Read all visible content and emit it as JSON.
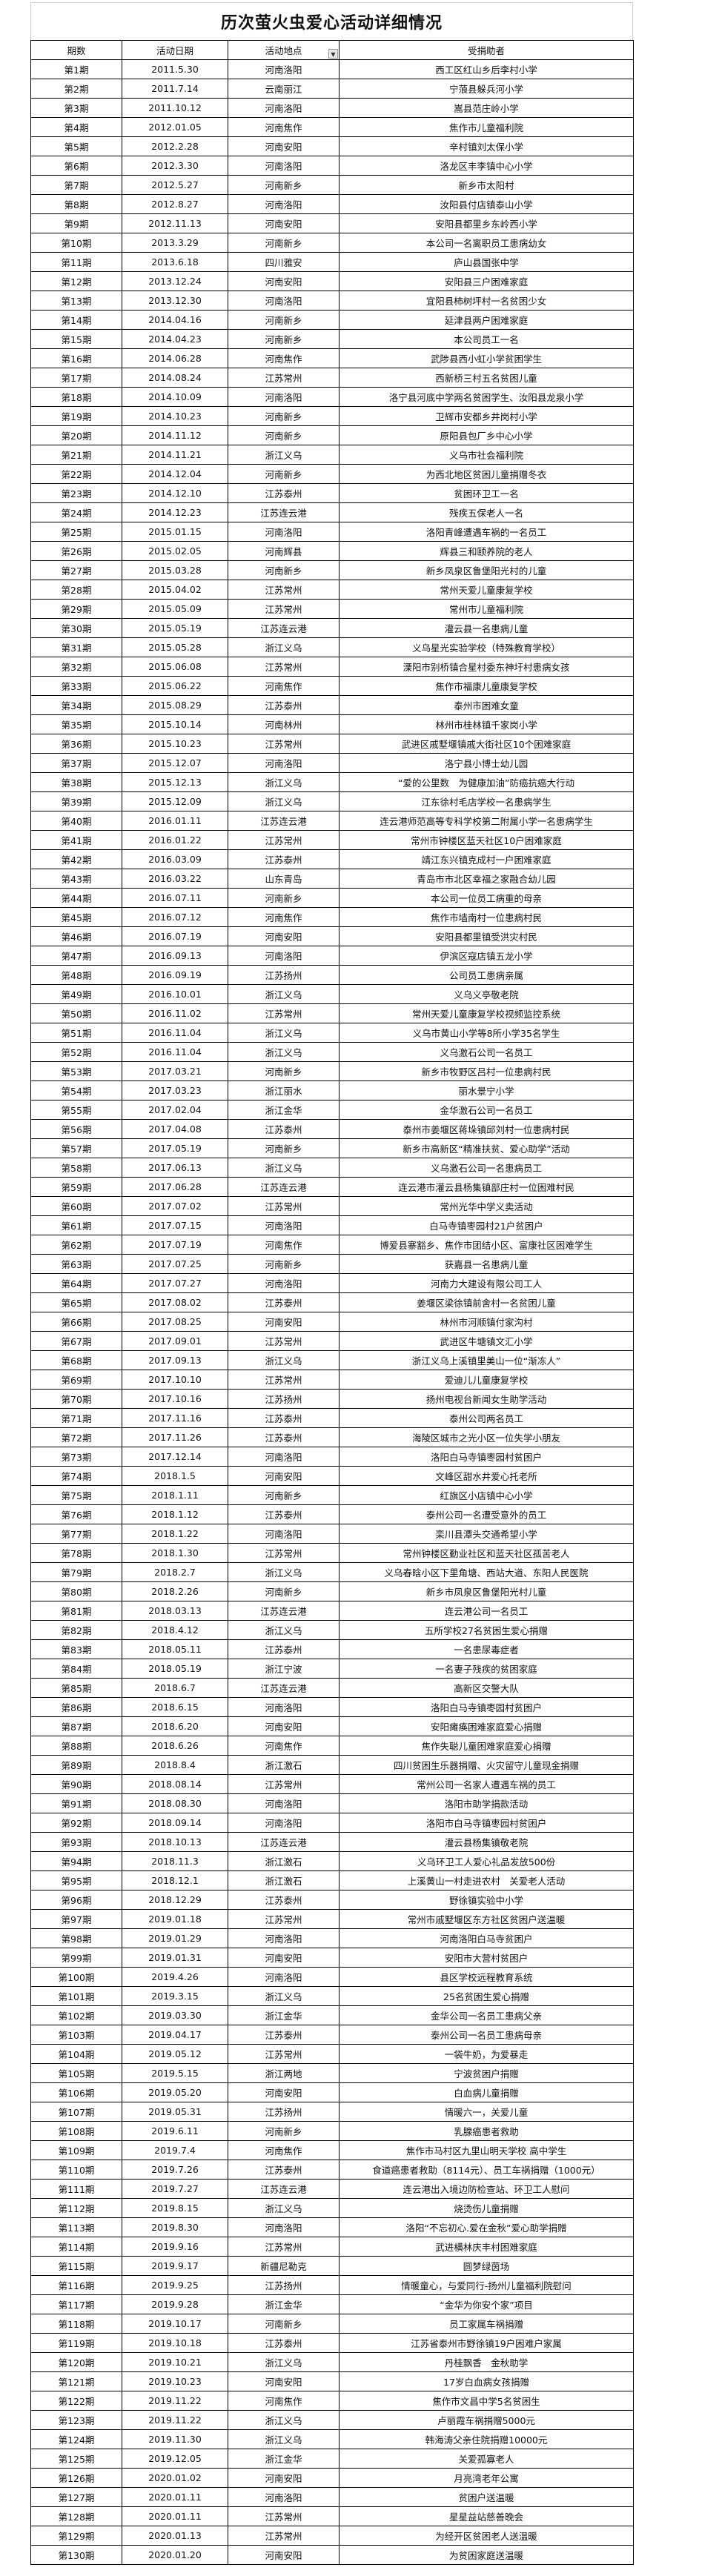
{
  "title": "历次萤火虫爱心活动详细情况",
  "headers": [
    "期数",
    "活动日期",
    "活动地点",
    "受捐助者"
  ],
  "filter_icon": "dropdown-filter-icon",
  "rows": [
    [
      "第1期",
      "2011.5.30",
      "河南洛阳",
      "西工区红山乡后李村小学"
    ],
    [
      "第2期",
      "2011.7.14",
      "云南丽江",
      "宁蒗县躲兵河小学"
    ],
    [
      "第3期",
      "2011.10.12",
      "河南洛阳",
      "嵩县范庄岭小学"
    ],
    [
      "第4期",
      "2012.01.05",
      "河南焦作",
      "焦作市儿童福利院"
    ],
    [
      "第5期",
      "2012.2.28",
      "河南安阳",
      "辛村镇刘太保小学"
    ],
    [
      "第6期",
      "2012.3.30",
      "河南洛阳",
      "洛龙区丰李镇中心小学"
    ],
    [
      "第7期",
      "2012.5.27",
      "河南新乡",
      "新乡市太阳村"
    ],
    [
      "第8期",
      "2012.8.27",
      "河南洛阳",
      "汝阳县付店镇泰山小学"
    ],
    [
      "第9期",
      "2012.11.13",
      "河南安阳",
      "安阳县都里乡东岭西小学"
    ],
    [
      "第10期",
      "2013.3.29",
      "河南新乡",
      "本公司一名离职员工患病幼女"
    ],
    [
      "第11期",
      "2013.6.18",
      "四川雅安",
      "庐山县国张中学"
    ],
    [
      "第12期",
      "2013.12.24",
      "河南安阳",
      "安阳县三户困难家庭"
    ],
    [
      "第13期",
      "2013.12.30",
      "河南洛阳",
      "宜阳县柿树坪村一名贫困少女"
    ],
    [
      "第14期",
      "2014.04.16",
      "河南新乡",
      "延津县两户困难家庭"
    ],
    [
      "第15期",
      "2014.04.23",
      "河南新乡",
      "本公司员工一名"
    ],
    [
      "第16期",
      "2014.06.28",
      "河南焦作",
      "武陟县西小虹小学贫困学生"
    ],
    [
      "第17期",
      "2014.08.24",
      "江苏常州",
      "西新桥三村五名贫困儿童"
    ],
    [
      "第18期",
      "2014.10.09",
      "河南洛阳",
      "洛宁县河底中学两名贫困学生、汝阳县龙泉小学"
    ],
    [
      "第19期",
      "2014.10.23",
      "河南新乡",
      "卫辉市安都乡井岗村小学"
    ],
    [
      "第20期",
      "2014.11.12",
      "河南新乡",
      "原阳县包厂乡中心小学"
    ],
    [
      "第21期",
      "2014.11.21",
      "浙江义乌",
      "义乌市社会福利院"
    ],
    [
      "第22期",
      "2014.12.04",
      "河南新乡",
      "为西北地区贫困儿童捐赠冬衣"
    ],
    [
      "第23期",
      "2014.12.10",
      "江苏泰州",
      "贫困环卫工一名"
    ],
    [
      "第24期",
      "2014.12.23",
      "江苏连云港",
      "残疾五保老人一名"
    ],
    [
      "第25期",
      "2015.01.15",
      "河南洛阳",
      "洛阳青峰遭遇车祸的一名员工"
    ],
    [
      "第26期",
      "2015.02.05",
      "河南辉县",
      "辉县三和颐养院的老人"
    ],
    [
      "第27期",
      "2015.03.28",
      "河南新乡",
      "新乡凤泉区鲁堡阳光村的儿童"
    ],
    [
      "第28期",
      "2015.04.02",
      "江苏常州",
      "常州天爱儿童康复学校"
    ],
    [
      "第29期",
      "2015.05.09",
      "江苏常州",
      "常州市儿童福利院"
    ],
    [
      "第30期",
      "2015.05.19",
      "江苏连云港",
      "灌云县一名患病儿童"
    ],
    [
      "第31期",
      "2015.05.28",
      "浙江义乌",
      "义乌星光实验学校（特殊教育学校）"
    ],
    [
      "第32期",
      "2015.06.08",
      "江苏常州",
      "溧阳市别桥镇合星村委东神圩村患病女孩"
    ],
    [
      "第33期",
      "2015.06.22",
      "河南焦作",
      "焦作市福康儿童康复学校"
    ],
    [
      "第34期",
      "2015.08.29",
      "江苏泰州",
      "泰州市困难女童"
    ],
    [
      "第35期",
      "2015.10.14",
      "河南林州",
      "林州市桂林镇千家岗小学"
    ],
    [
      "第36期",
      "2015.10.23",
      "江苏常州",
      "武进区戚墅堰镇戚大街社区10个困难家庭"
    ],
    [
      "第37期",
      "2015.12.07",
      "河南洛阳",
      "洛宁县小博士幼儿园"
    ],
    [
      "第38期",
      "2015.12.13",
      "浙江义乌",
      "“爱的公里数　为健康加油”防癌抗癌大行动"
    ],
    [
      "第39期",
      "2015.12.09",
      "浙江义乌",
      "江东徐村毛店学校一名患病学生"
    ],
    [
      "第40期",
      "2016.01.11",
      "江苏连云港",
      "连云港师范高等专科学校第二附属小学一名患病学生"
    ],
    [
      "第41期",
      "2016.01.22",
      "江苏常州",
      "常州市钟楼区蓝天社区10户困难家庭"
    ],
    [
      "第42期",
      "2016.03.09",
      "江苏泰州",
      "靖江东兴镇克成村一户困难家庭"
    ],
    [
      "第43期",
      "2016.03.22",
      "山东青岛",
      "青岛市市北区幸福之家融合幼儿园"
    ],
    [
      "第44期",
      "2016.07.11",
      "河南新乡",
      "本公司一位员工病重的母亲"
    ],
    [
      "第45期",
      "2016.07.12",
      "河南焦作",
      "焦作市墙南村一位患病村民"
    ],
    [
      "第46期",
      "2016.07.19",
      "河南安阳",
      "安阳县都里镇受洪灾村民"
    ],
    [
      "第47期",
      "2016.09.13",
      "河南洛阳",
      "伊滨区寇店镇五龙小学"
    ],
    [
      "第48期",
      "2016.09.19",
      "江苏扬州",
      "公司员工患病亲属"
    ],
    [
      "第49期",
      "2016.10.01",
      "浙江义乌",
      "义乌义亭敬老院"
    ],
    [
      "第50期",
      "2016.11.02",
      "江苏常州",
      "常州天爱儿童康复学校视频监控系统"
    ],
    [
      "第51期",
      "2016.11.04",
      "浙江义乌",
      "义乌市黄山小学等8所小学35名学生"
    ],
    [
      "第52期",
      "2016.11.04",
      "浙江义乌",
      "义乌激石公司一名员工"
    ],
    [
      "第53期",
      "2017.03.21",
      "河南新乡",
      "新乡市牧野区吕村一位患病村民"
    ],
    [
      "第54期",
      "2017.03.23",
      "浙江丽水",
      "丽水景宁小学"
    ],
    [
      "第55期",
      "2017.02.04",
      "浙江金华",
      "金华激石公司一名员工"
    ],
    [
      "第56期",
      "2017.04.08",
      "江苏泰州",
      "泰州市姜堰区蒋垛镇邱刘村一位患病村民"
    ],
    [
      "第57期",
      "2017.05.19",
      "河南新乡",
      "新乡市高新区“精准扶贫、爱心助学”活动"
    ],
    [
      "第58期",
      "2017.06.13",
      "浙江义乌",
      "义乌激石公司一名患病员工"
    ],
    [
      "第59期",
      "2017.06.28",
      "江苏连云港",
      "连云港市灌云县杨集镇部庄村一位困难村民"
    ],
    [
      "第60期",
      "2017.07.02",
      "江苏常州",
      "常州光华中学义卖活动"
    ],
    [
      "第61期",
      "2017.07.15",
      "河南洛阳",
      "白马寺镇枣园村21户贫困户"
    ],
    [
      "第62期",
      "2017.07.19",
      "河南焦作",
      "博爱县寨豁乡、焦作市团结小区、富康社区困难学生"
    ],
    [
      "第63期",
      "2017.07.25",
      "河南新乡",
      "获嘉县一名患病儿童"
    ],
    [
      "第64期",
      "2017.07.27",
      "河南洛阳",
      "河南力大建设有限公司工人"
    ],
    [
      "第65期",
      "2017.08.02",
      "江苏泰州",
      "姜堰区梁徐镇前舍村一名贫困儿童"
    ],
    [
      "第66期",
      "2017.08.25",
      "河南安阳",
      "林州市河顺镇付家沟村"
    ],
    [
      "第67期",
      "2017.09.01",
      "江苏常州",
      "武进区牛塘镇文汇小学"
    ],
    [
      "第68期",
      "2017.09.13",
      "浙江义乌",
      "浙江义乌上溪镇里美山一位“渐冻人”"
    ],
    [
      "第69期",
      "2017.10.10",
      "江苏常州",
      "爱迪儿儿童康复学校"
    ],
    [
      "第70期",
      "2017.10.16",
      "江苏扬州",
      "扬州电视台新闻女生助学活动"
    ],
    [
      "第71期",
      "2017.11.16",
      "江苏泰州",
      "泰州公司两名员工"
    ],
    [
      "第72期",
      "2017.11.26",
      "江苏泰州",
      "海陵区城市之光小区一位失学小朋友"
    ],
    [
      "第73期",
      "2017.12.14",
      "河南洛阳",
      "洛阳白马寺镇枣园村贫困户"
    ],
    [
      "第74期",
      "2018.1.5",
      "河南安阳",
      "文峰区甜水井爱心托老所"
    ],
    [
      "第75期",
      "2018.1.11",
      "河南新乡",
      "红旗区小店镇中心小学"
    ],
    [
      "第76期",
      "2018.1.12",
      "江苏泰州",
      "泰州公司一名遭受意外的员工"
    ],
    [
      "第77期",
      "2018.1.22",
      "河南洛阳",
      "栾川县潭头交通希望小学"
    ],
    [
      "第78期",
      "2018.1.30",
      "江苏常州",
      "常州钟楼区勤业社区和蓝天社区孤苦老人"
    ],
    [
      "第79期",
      "2018.2.7",
      "浙江义乌",
      "义乌春晗小区下里角塘、西站大道、东阳人民医院"
    ],
    [
      "第80期",
      "2018.2.26",
      "河南新乡",
      "新乡市凤泉区鲁堡阳光村儿童"
    ],
    [
      "第81期",
      "2018.03.13",
      "江苏连云港",
      "连云港公司一名员工"
    ],
    [
      "第82期",
      "2018.4.12",
      "浙江义乌",
      "五所学校27名贫困生爱心捐赠"
    ],
    [
      "第83期",
      "2018.05.11",
      "江苏泰州",
      "一名患尿毒症者"
    ],
    [
      "第84期",
      "2018.05.19",
      "浙江宁波",
      "一名妻子残疾的贫困家庭"
    ],
    [
      "第85期",
      "2018.6.7",
      "江苏连云港",
      "高新区交警大队"
    ],
    [
      "第86期",
      "2018.6.15",
      "河南洛阳",
      "洛阳白马寺镇枣园村贫困户"
    ],
    [
      "第87期",
      "2018.6.20",
      "河南安阳",
      "安阳瘫痪困难家庭爱心捐赠"
    ],
    [
      "第88期",
      "2018.6.26",
      "河南焦作",
      "焦作失聪儿童困难家庭爱心捐赠"
    ],
    [
      "第89期",
      "2018.8.4",
      "浙江激石",
      "四川贫困生乐器捐赠、火灾留守儿童现金捐赠"
    ],
    [
      "第90期",
      "2018.08.14",
      "江苏常州",
      "常州公司一名家人遭遇车祸的员工"
    ],
    [
      "第91期",
      "2018.08.30",
      "河南洛阳",
      "洛阳市助学捐款活动"
    ],
    [
      "第92期",
      "2018.09.14",
      "河南洛阳",
      "洛阳市白马寺镇枣园村贫困户"
    ],
    [
      "第93期",
      "2018.10.13",
      "江苏连云港",
      "灌云县杨集镇敬老院"
    ],
    [
      "第94期",
      "2018.11.3",
      "浙江激石",
      "义乌环卫工人爱心礼品发放500份"
    ],
    [
      "第95期",
      "2018.12.1",
      "浙江激石",
      "上溪黄山一村走进农村　关爱老人活动"
    ],
    [
      "第96期",
      "2018.12.29",
      "江苏泰州",
      "野徐镇实验中小学"
    ],
    [
      "第97期",
      "2019.01.18",
      "江苏常州",
      "常州市戚墅堰区东方社区贫困户送温暖"
    ],
    [
      "第98期",
      "2019.01.29",
      "河南洛阳",
      "河南洛阳白马寺贫困户"
    ],
    [
      "第99期",
      "2019.01.31",
      "河南安阳",
      "安阳市大营村贫困户"
    ],
    [
      "第100期",
      "2019.4.26",
      "河南洛阳",
      "县区学校远程教育系统"
    ],
    [
      "第101期",
      "2019.3.15",
      "浙江义乌",
      "25名贫困生爱心捐赠"
    ],
    [
      "第102期",
      "2019.03.30",
      "浙江金华",
      "金华公司一名员工患病父亲"
    ],
    [
      "第103期",
      "2019.04.17",
      "江苏泰州",
      "泰州公司一名员工患病母亲"
    ],
    [
      "第104期",
      "2019.05.12",
      "江苏常州",
      "一袋牛奶，为爱暴走"
    ],
    [
      "第105期",
      "2019.5.15",
      "浙江两地",
      "宁波贫困户捐赠"
    ],
    [
      "第106期",
      "2019.05.20",
      "河南安阳",
      "白血病儿童捐赠"
    ],
    [
      "第107期",
      "2019.05.31",
      "江苏扬州",
      "情暖六一，关爱儿童"
    ],
    [
      "第108期",
      "2019.6.11",
      "河南新乡",
      "乳腺癌患者救助"
    ],
    [
      "第109期",
      "2019.7.4",
      "河南焦作",
      "焦作市马村区九里山明天学校 高中学生"
    ],
    [
      "第110期",
      "2019.7.26",
      "江苏泰州",
      "食道癌患者救助（8114元）、员工车祸捐赠（1000元）"
    ],
    [
      "第111期",
      "2019.7.27",
      "江苏连云港",
      "连云港出入境边防检查站、环卫工人慰问"
    ],
    [
      "第112期",
      "2019.8.15",
      "浙江义乌",
      "烧烫伤儿童捐赠"
    ],
    [
      "第113期",
      "2019.8.30",
      "河南洛阳",
      "洛阳“不忘初心.爱在金秋”爱心助学捐赠"
    ],
    [
      "第114期",
      "2019.9.16",
      "江苏常州",
      "武进横林庆丰村困难家庭"
    ],
    [
      "第115期",
      "2019.9.17",
      "新疆尼勒克",
      "圆梦绿茵场"
    ],
    [
      "第116期",
      "2019.9.25",
      "江苏扬州",
      "情暖童心，与爱同行-扬州儿童福利院慰问"
    ],
    [
      "第117期",
      "2019.9.28",
      "浙江金华",
      "“金华为你安个家”项目"
    ],
    [
      "第118期",
      "2019.10.17",
      "河南新乡",
      "员工家属车祸捐赠"
    ],
    [
      "第119期",
      "2019.10.18",
      "江苏泰州",
      "江苏省泰州市野徐镇19户困难户家属"
    ],
    [
      "第120期",
      "2019.10.21",
      "浙江义乌",
      "丹桂飘香　金秋助学"
    ],
    [
      "第121期",
      "2019.10.23",
      "河南安阳",
      "17岁白血病女孩捐赠"
    ],
    [
      "第122期",
      "2019.11.22",
      "河南焦作",
      "焦作市文昌中学5名贫困生"
    ],
    [
      "第123期",
      "2019.11.22",
      "浙江义乌",
      "卢丽霞车祸捐赠5000元"
    ],
    [
      "第124期",
      "2019.11.30",
      "浙江义乌",
      "韩海涛父亲住院捐赠10000元"
    ],
    [
      "第125期",
      "2019.12.05",
      "浙江金华",
      "关爱孤寡老人"
    ],
    [
      "第126期",
      "2020.01.02",
      "河南安阳",
      "月亮湾老年公寓"
    ],
    [
      "第127期",
      "2020.01.11",
      "河南洛阳",
      "贫困户送温暖"
    ],
    [
      "第128期",
      "2020.01.11",
      "江苏常州",
      "星星益站慈善晚会"
    ],
    [
      "第129期",
      "2020.01.13",
      "江苏常州",
      "为经开区贫困老人送温暖"
    ],
    [
      "第130期",
      "2020.01.20",
      "河南安阳",
      "为贫困家庭送温暖"
    ]
  ]
}
